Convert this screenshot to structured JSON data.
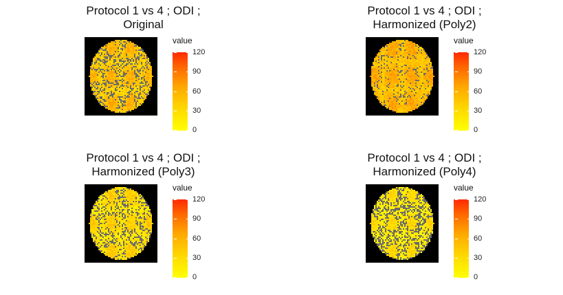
{
  "chart_data": [
    {
      "type": "heatmap",
      "title": "Protocol 1 vs 4 ; ODI ;\n  Original",
      "legend": {
        "title": "value",
        "ticks": [
          120,
          90,
          60,
          30,
          0
        ],
        "range": [
          0,
          120
        ]
      },
      "colorscale": [
        "#ffff00",
        "#ffdd00",
        "#ffaa00",
        "#ff6a00",
        "#ff2a00"
      ],
      "mean_value": 35,
      "background": "#000000"
    },
    {
      "type": "heatmap",
      "title": "Protocol 1 vs 4 ; ODI ;\n Harmonized (Poly2)",
      "legend": {
        "title": "value",
        "ticks": [
          120,
          90,
          60,
          30,
          0
        ],
        "range": [
          0,
          120
        ]
      },
      "colorscale": [
        "#ffff00",
        "#ffdd00",
        "#ffaa00",
        "#ff6a00",
        "#ff2a00"
      ],
      "mean_value": 42,
      "background": "#000000"
    },
    {
      "type": "heatmap",
      "title": "Protocol 1 vs 4 ; ODI ;\n Harmonized (Poly3)",
      "legend": {
        "title": "value",
        "ticks": [
          120,
          90,
          60,
          30,
          0
        ],
        "range": [
          0,
          120
        ]
      },
      "colorscale": [
        "#ffff00",
        "#ffdd00",
        "#ffaa00",
        "#ff6a00",
        "#ff2a00"
      ],
      "mean_value": 20,
      "background": "#000000"
    },
    {
      "type": "heatmap",
      "title": "Protocol 1 vs 4 ; ODI ;\n Harmonized (Poly4)",
      "legend": {
        "title": "value",
        "ticks": [
          120,
          90,
          60,
          30,
          0
        ],
        "range": [
          0,
          120
        ]
      },
      "colorscale": [
        "#ffff00",
        "#ffdd00",
        "#ffaa00",
        "#ff6a00",
        "#ff2a00"
      ],
      "mean_value": 12,
      "background": "#000000"
    }
  ]
}
